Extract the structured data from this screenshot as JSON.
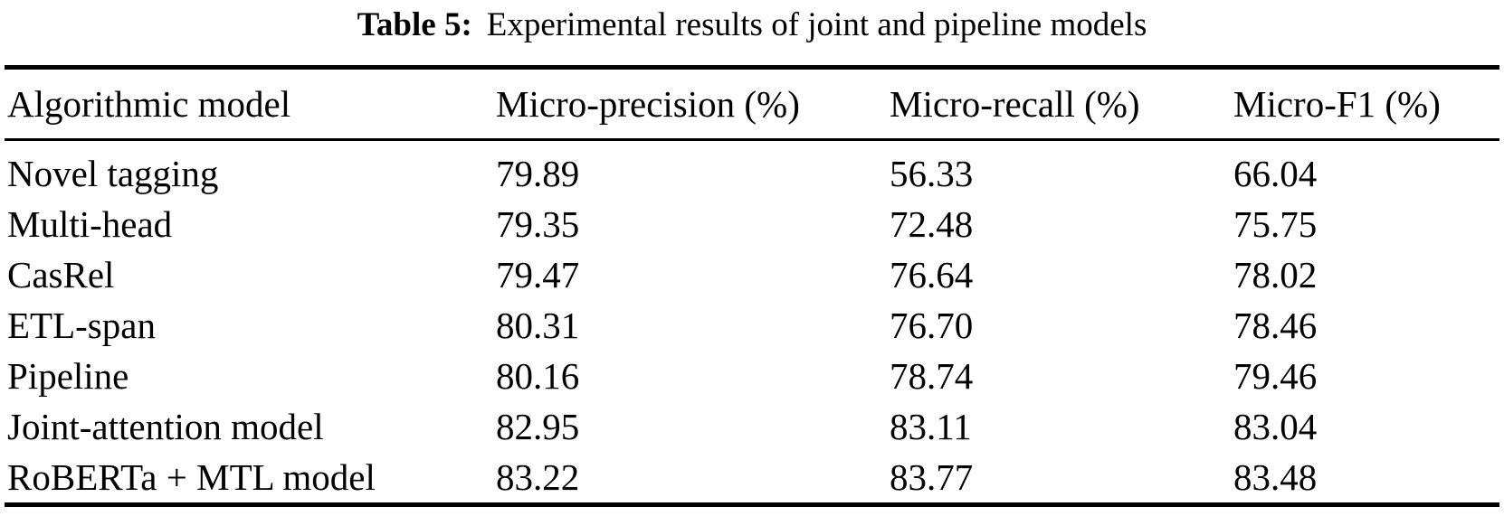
{
  "table": {
    "caption": {
      "label": "Table 5:",
      "text": "Experimental results of joint and pipeline models"
    },
    "columns": [
      "Algorithmic model",
      "Micro-precision (%)",
      "Micro-recall (%)",
      "Micro-F1 (%)"
    ],
    "rows": [
      {
        "model": "Novel tagging",
        "precision": "79.89",
        "recall": "56.33",
        "f1": "66.04"
      },
      {
        "model": "Multi-head",
        "precision": "79.35",
        "recall": "72.48",
        "f1": "75.75"
      },
      {
        "model": "CasRel",
        "precision": "79.47",
        "recall": "76.64",
        "f1": "78.02"
      },
      {
        "model": "ETL-span",
        "precision": "80.31",
        "recall": "76.70",
        "f1": "78.46"
      },
      {
        "model": "Pipeline",
        "precision": "80.16",
        "recall": "78.74",
        "f1": "79.46"
      },
      {
        "model": "Joint-attention model",
        "precision": "82.95",
        "recall": "83.11",
        "f1": "83.04"
      },
      {
        "model": "RoBERTa + MTL model",
        "precision": "83.22",
        "recall": "83.77",
        "f1": "83.48"
      }
    ]
  },
  "chart_data": {
    "type": "table",
    "title": "Table 5: Experimental results of joint and pipeline models",
    "columns": [
      "Algorithmic model",
      "Micro-precision (%)",
      "Micro-recall (%)",
      "Micro-F1 (%)"
    ],
    "rows": [
      [
        "Novel tagging",
        79.89,
        56.33,
        66.04
      ],
      [
        "Multi-head",
        79.35,
        72.48,
        75.75
      ],
      [
        "CasRel",
        79.47,
        76.64,
        78.02
      ],
      [
        "ETL-span",
        80.31,
        76.7,
        78.46
      ],
      [
        "Pipeline",
        80.16,
        78.74,
        79.46
      ],
      [
        "Joint-attention model",
        82.95,
        83.11,
        83.04
      ],
      [
        "RoBERTa + MTL model",
        83.22,
        83.77,
        83.48
      ]
    ]
  },
  "colors": {
    "text": "#000000",
    "background": "#ffffff",
    "rule": "#000000"
  }
}
